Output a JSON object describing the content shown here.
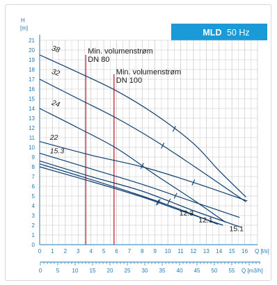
{
  "chart_data": {
    "type": "line",
    "badge": {
      "model": "MLD",
      "frequency": "50 Hz",
      "color": "#1a9ad6"
    },
    "y_axis": {
      "label": "H",
      "unit": "[m]",
      "range": [
        0,
        21
      ],
      "ticks": [
        "0",
        "1",
        "2",
        "3",
        "4",
        "5",
        "6",
        "7",
        "8",
        "9",
        "10",
        "11",
        "12",
        "13",
        "14",
        "15",
        "16",
        "17",
        "18",
        "19",
        "20",
        "21"
      ]
    },
    "x_axis": {
      "unit": "Q [l/s]",
      "range": [
        0,
        17
      ],
      "ticks": [
        "0",
        "1",
        "2",
        "3",
        "4",
        "5",
        "6",
        "7",
        "8",
        "9",
        "10",
        "11",
        "12",
        "13",
        "14",
        "15",
        "16"
      ]
    },
    "x_axis_secondary": {
      "unit": "Q [m3/h]",
      "ticks": [
        "0",
        "5",
        "10",
        "15",
        "20",
        "25",
        "30",
        "35",
        "40",
        "45",
        "50",
        "55"
      ]
    },
    "grid": true,
    "series": [
      {
        "name": "38",
        "x": [
          0,
          3,
          6,
          9,
          12,
          14,
          16.1
        ],
        "y": [
          19.5,
          17.7,
          15.8,
          13.4,
          10.4,
          7.6,
          4.9
        ],
        "ticks_at": [
          10.5
        ]
      },
      {
        "name": "32",
        "x": [
          0,
          3,
          6,
          9,
          12,
          14,
          16.1
        ],
        "y": [
          17.0,
          15.0,
          13.0,
          10.7,
          8.1,
          6.3,
          4.4
        ],
        "ticks_at": [
          9.6
        ]
      },
      {
        "name": "24",
        "x": [
          0,
          3,
          6,
          9,
          12,
          14.5
        ],
        "y": [
          14.0,
          12.0,
          9.9,
          7.2,
          4.6,
          2.3
        ],
        "ticks_at": [
          8.0
        ]
      },
      {
        "name": "22",
        "x": [
          0,
          4,
          8,
          12,
          16.2
        ],
        "y": [
          10.6,
          9.2,
          8.0,
          6.4,
          4.5
        ],
        "ticks_at": [
          12.0
        ]
      },
      {
        "name": "15.3",
        "x": [
          0,
          4,
          8,
          12,
          15.6
        ],
        "y": [
          9.4,
          7.8,
          6.2,
          4.4,
          2.8
        ],
        "ticks_at": [
          10.6
        ]
      },
      {
        "name": "15.1",
        "x": [
          0,
          4,
          8,
          12,
          15.7
        ],
        "y": [
          8.6,
          7.0,
          5.5,
          3.5,
          1.8
        ],
        "ticks_at": [
          10.1
        ]
      },
      {
        "name": "12.3",
        "x": [
          0,
          4,
          8,
          11,
          13.9
        ],
        "y": [
          8.3,
          6.7,
          5.0,
          3.6,
          2.1
        ],
        "ticks_at": [
          9.3
        ]
      },
      {
        "name": "12.1",
        "x": [
          0,
          4,
          8,
          11,
          14.3
        ],
        "y": [
          8.0,
          6.5,
          4.9,
          3.5,
          2.0
        ],
        "ticks_at": [
          9.2
        ]
      }
    ],
    "end_labels": [
      {
        "text": "12.3",
        "x": 10.9,
        "y": 3.0
      },
      {
        "text": "12.1",
        "x": 12.4,
        "y": 2.3
      },
      {
        "text": "15.1",
        "x": 14.8,
        "y": 1.4
      }
    ],
    "reference_lines": [
      {
        "x": 3.6,
        "from_y": 0,
        "to_y": 19.5,
        "color": "#c9303f",
        "label_lines": [
          "Min. volumenstrøm",
          "DN 80"
        ]
      },
      {
        "x": 5.8,
        "from_y": 0,
        "to_y": 17.5,
        "color": "#c9303f",
        "label_lines": [
          "Min. volumenstrøm",
          "DN 100"
        ]
      }
    ],
    "line_color": "#0d3d6e",
    "grid_color": "#c4c6c9",
    "axis_color": "#1f7ab8"
  }
}
